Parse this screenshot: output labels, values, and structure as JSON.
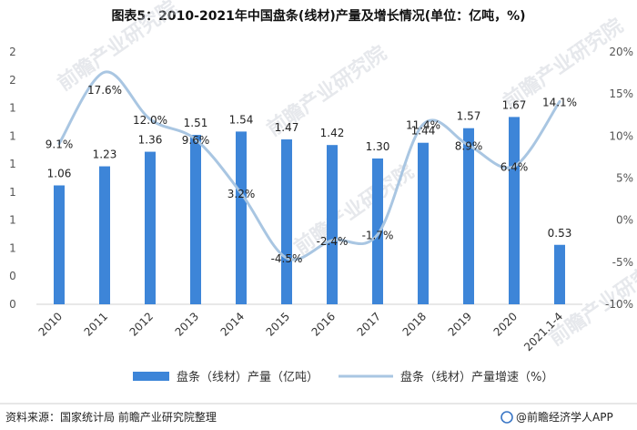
{
  "chart_data": {
    "type": "bar",
    "title": "图表5：2010-2021年中国盘条(线材)产量及增长情况(单位：亿吨，%)",
    "categories": [
      "2010",
      "2011",
      "2012",
      "2013",
      "2014",
      "2015",
      "2016",
      "2017",
      "2018",
      "2019",
      "2020",
      "2021.1-4"
    ],
    "left_axis_tick_labels": [
      "0",
      "0",
      "1",
      "1",
      "1",
      "1",
      "1",
      "1",
      "2",
      "2"
    ],
    "right_axis_tick_labels": [
      "-10%",
      "-5%",
      "0%",
      "5%",
      "10%",
      "15%",
      "20%"
    ],
    "right_axis_range": [
      -10,
      20
    ],
    "left_axis_range": [
      0,
      2.25
    ],
    "series": [
      {
        "name": "盘条（线材）产量（亿吨）",
        "type": "bar",
        "axis": "left",
        "color": "#3d85d8",
        "values": [
          1.06,
          1.23,
          1.36,
          1.51,
          1.54,
          1.47,
          1.42,
          1.3,
          1.44,
          1.57,
          1.67,
          0.53
        ],
        "labels": [
          "1.06",
          "1.23",
          "1.36",
          "1.51",
          "1.54",
          "1.47",
          "1.42",
          "1.30",
          "1.44",
          "1.57",
          "1.67",
          "0.53"
        ]
      },
      {
        "name": "盘条（线材）产量增速（%）",
        "type": "line",
        "axis": "right",
        "color": "#a9c6e2",
        "values": [
          9.1,
          17.6,
          12.0,
          9.6,
          3.2,
          -4.5,
          -2.4,
          -1.7,
          11.4,
          8.9,
          6.4,
          14.1
        ],
        "labels": [
          "9.1%",
          "17.6%",
          "12.0%",
          "9.6%",
          "3.2%",
          "-4.5%",
          "-2.4%",
          "-1.7%",
          "11.4%",
          "8.9%",
          "6.4%",
          "14.1%"
        ]
      }
    ],
    "legend_position": "bottom"
  },
  "footer": {
    "source": "资料来源：国家统计局 前瞻产业研究院整理",
    "brand": "@前瞻经济学人APP"
  },
  "watermark": "前瞻产业研究院"
}
